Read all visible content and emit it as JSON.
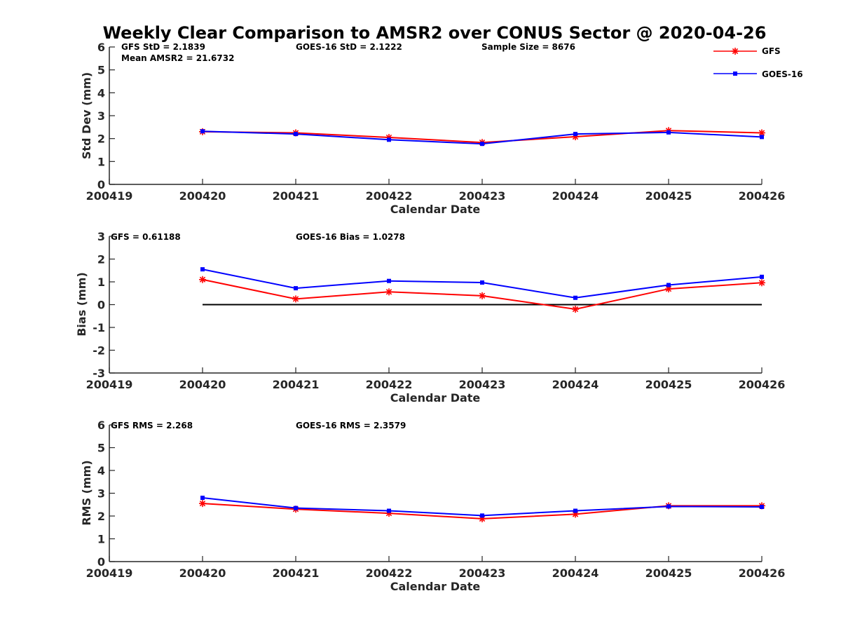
{
  "title": "Weekly Clear Comparison to AMSR2 over CONUS Sector @ 2020-04-26",
  "legend": {
    "placement": "top-right",
    "entries": [
      {
        "label": "GFS",
        "color": "#ff0000",
        "marker": "asterisk"
      },
      {
        "label": "GOES-16",
        "color": "#0000ff",
        "marker": "square"
      }
    ]
  },
  "chart_data": [
    {
      "type": "line",
      "xlabel": "Calendar Date",
      "ylabel": "Std Dev (mm)",
      "xlim": [
        200419,
        200426
      ],
      "ylim": [
        0,
        6
      ],
      "x_ticks": [
        "200419",
        "200420",
        "200421",
        "200422",
        "200423",
        "200424",
        "200425",
        "200426"
      ],
      "y_ticks": [
        "0",
        "1",
        "2",
        "3",
        "4",
        "5",
        "6"
      ],
      "x": [
        200420,
        200421,
        200422,
        200423,
        200424,
        200425,
        200426
      ],
      "series": [
        {
          "name": "GFS",
          "color": "#ff0000",
          "marker": "asterisk",
          "values": [
            2.3,
            2.25,
            2.05,
            1.83,
            2.08,
            2.35,
            2.25
          ]
        },
        {
          "name": "GOES-16",
          "color": "#0000ff",
          "marker": "square",
          "values": [
            2.32,
            2.2,
            1.95,
            1.77,
            2.2,
            2.27,
            2.07
          ]
        }
      ],
      "annotations": [
        "GFS StD = 2.1839",
        "Mean AMSR2 = 21.6732",
        "GOES-16 StD = 2.1222",
        "Sample Size = 8676"
      ],
      "grid": false
    },
    {
      "type": "line",
      "xlabel": "Calendar Date",
      "ylabel": "Bias (mm)",
      "xlim": [
        200419,
        200426
      ],
      "ylim": [
        -3,
        3
      ],
      "x_ticks": [
        "200419",
        "200420",
        "200421",
        "200422",
        "200423",
        "200424",
        "200425",
        "200426"
      ],
      "y_ticks": [
        "-3",
        "-2",
        "-1",
        "0",
        "1",
        "2",
        "3"
      ],
      "x": [
        200420,
        200421,
        200422,
        200423,
        200424,
        200425,
        200426
      ],
      "series": [
        {
          "name": "GFS",
          "color": "#ff0000",
          "marker": "asterisk",
          "values": [
            1.1,
            0.25,
            0.56,
            0.39,
            -0.2,
            0.69,
            0.96
          ]
        },
        {
          "name": "GOES-16",
          "color": "#0000ff",
          "marker": "square",
          "values": [
            1.55,
            0.72,
            1.04,
            0.97,
            0.3,
            0.86,
            1.22
          ]
        }
      ],
      "reference_line": {
        "y": 0,
        "color": "#000000"
      },
      "annotations": [
        "GFS = 0.61188",
        "GOES-16 Bias  = 1.0278"
      ],
      "grid": false
    },
    {
      "type": "line",
      "xlabel": "Calendar Date",
      "ylabel": "RMS (mm)",
      "xlim": [
        200419,
        200426
      ],
      "ylim": [
        0,
        6
      ],
      "x_ticks": [
        "200419",
        "200420",
        "200421",
        "200422",
        "200423",
        "200424",
        "200425",
        "200426"
      ],
      "y_ticks": [
        "0",
        "1",
        "2",
        "3",
        "4",
        "5",
        "6"
      ],
      "x": [
        200420,
        200421,
        200422,
        200423,
        200424,
        200425,
        200426
      ],
      "series": [
        {
          "name": "GFS",
          "color": "#ff0000",
          "marker": "asterisk",
          "values": [
            2.55,
            2.3,
            2.12,
            1.88,
            2.08,
            2.45,
            2.45
          ]
        },
        {
          "name": "GOES-16",
          "color": "#0000ff",
          "marker": "square",
          "values": [
            2.8,
            2.35,
            2.23,
            2.02,
            2.23,
            2.42,
            2.4
          ]
        }
      ],
      "annotations": [
        "GFS RMS = 2.268",
        "GOES-16 RMS = 2.3579"
      ],
      "grid": false
    }
  ]
}
